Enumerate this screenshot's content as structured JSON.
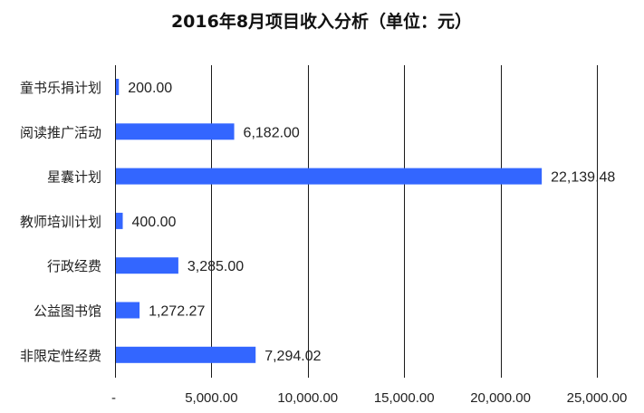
{
  "chart_data": {
    "type": "bar",
    "orientation": "horizontal",
    "title": "2016年8月项目收入分析（单位：元）",
    "xlabel": "",
    "ylabel": "",
    "categories": [
      "童书乐捐计划",
      "阅读推广活动",
      "星囊计划",
      "教师培训计划",
      "行政经费",
      "公益图书馆",
      "非限定性经费"
    ],
    "values": [
      200.0,
      6182.0,
      22139.48,
      400.0,
      3285.0,
      1272.27,
      7294.02
    ],
    "value_labels": [
      "200.00",
      "6,182.00",
      "22,139.48",
      "400.00",
      "3,285.00",
      "1,272.27",
      "7,294.02"
    ],
    "xlim": [
      0,
      25000
    ],
    "x_ticks": [
      0,
      5000,
      10000,
      15000,
      20000,
      25000
    ],
    "x_tick_labels": [
      "-",
      "5,000.00",
      "10,000.00",
      "15,000.00",
      "20,000.00",
      "25,000.00"
    ],
    "grid": true,
    "legend": "none",
    "bar_color": "#3366ff"
  }
}
